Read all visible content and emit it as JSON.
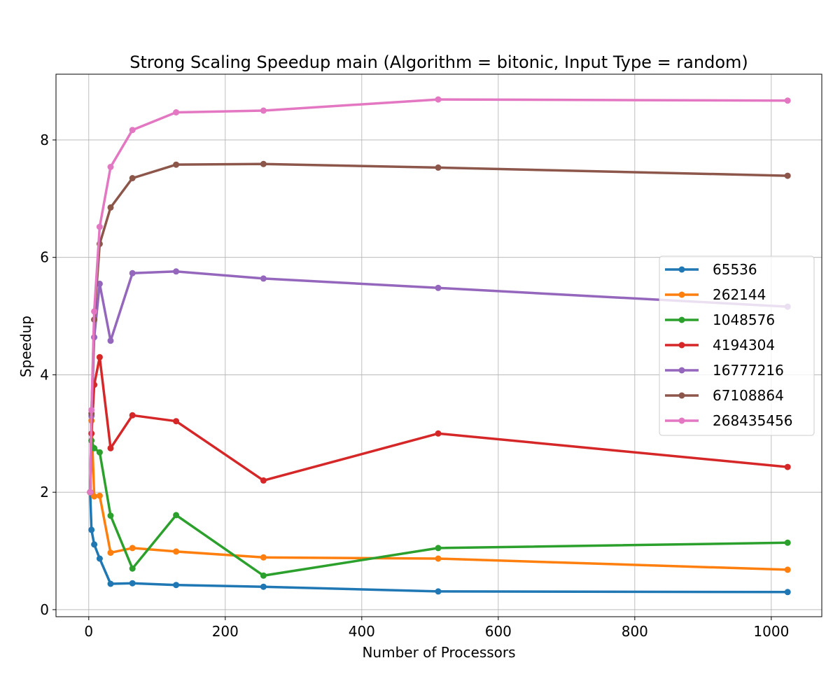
{
  "chart_data": {
    "type": "line",
    "title": "Strong Scaling Speedup main (Algorithm = bitonic, Input Type = random)",
    "xlabel": "Number of Processors",
    "ylabel": "Speedup",
    "xlim": [
      -48,
      1074
    ],
    "ylim": [
      -0.12,
      9.12
    ],
    "xticks": [
      0,
      200,
      400,
      600,
      800,
      1000
    ],
    "yticks": [
      0,
      2,
      4,
      6,
      8
    ],
    "grid": true,
    "legend_position": "center-right",
    "x": [
      2,
      4,
      8,
      16,
      32,
      64,
      128,
      256,
      512,
      1024
    ],
    "series": [
      {
        "name": "65536",
        "color": "#1f77b4",
        "values": [
          2.0,
          1.36,
          1.11,
          0.87,
          0.44,
          0.45,
          0.42,
          0.39,
          0.31,
          0.3
        ]
      },
      {
        "name": "262144",
        "color": "#ff7f0e",
        "values": [
          2.0,
          3.22,
          1.93,
          1.94,
          0.97,
          1.05,
          0.99,
          0.89,
          0.87,
          0.68
        ]
      },
      {
        "name": "1048576",
        "color": "#2ca02c",
        "values": [
          2.0,
          2.88,
          2.75,
          2.68,
          1.6,
          0.7,
          1.61,
          0.58,
          1.05,
          1.14
        ]
      },
      {
        "name": "4194304",
        "color": "#d62728",
        "values": [
          2.0,
          3.0,
          3.83,
          4.3,
          2.75,
          3.31,
          3.21,
          2.2,
          3.0,
          2.43
        ]
      },
      {
        "name": "16777216",
        "color": "#9467bd",
        "values": [
          2.0,
          3.3,
          4.64,
          5.55,
          4.58,
          5.73,
          5.76,
          5.64,
          5.48,
          5.16
        ]
      },
      {
        "name": "67108864",
        "color": "#8c564b",
        "values": [
          2.0,
          3.34,
          4.94,
          6.23,
          6.85,
          7.35,
          7.58,
          7.59,
          7.53,
          7.39
        ]
      },
      {
        "name": "268435456",
        "color": "#e377c2",
        "values": [
          2.0,
          3.4,
          5.08,
          6.52,
          7.54,
          8.17,
          8.47,
          8.5,
          8.69,
          8.67
        ]
      }
    ]
  }
}
